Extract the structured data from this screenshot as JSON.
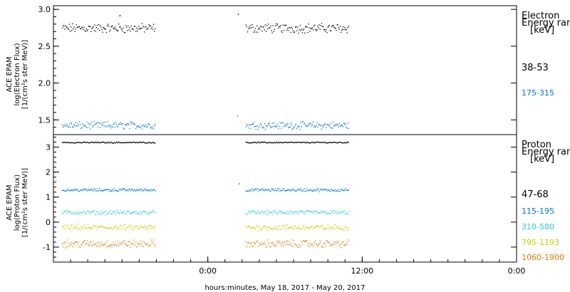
{
  "chart_data": {
    "type": "scatter",
    "xlabel": "hours:minutes, May 18, 2017 - May 20, 2017",
    "x_range_hours": [
      -18,
      36
    ],
    "x_ticks": [
      {
        "hours": 0,
        "label": "0:00"
      },
      {
        "hours": 18,
        "label": "12:00"
      },
      {
        "hours": 36,
        "label": "0:00"
      }
    ],
    "data_gaps_hours": [
      [
        -6.2,
        -5.6
      ],
      [
        4.0,
        4.4
      ]
    ],
    "data_coverage_hours": [
      [
        -17,
        -6.2
      ],
      [
        4.4,
        16.4
      ]
    ],
    "panels": [
      {
        "name": "electron",
        "ylabel_lines": [
          "ACE EPAM",
          "log(Electron Flux)",
          "[1/(cm²s ster MeV)]"
        ],
        "ylim": [
          1.3,
          3.05
        ],
        "yticks": [
          1.5,
          2.0,
          2.5,
          3.0
        ],
        "ytick_labels": [
          "1.5",
          "2.0",
          "2.5",
          "3.0"
        ],
        "legend_title": [
          "Electron",
          "Energy ranges",
          "[keV]"
        ],
        "series": [
          {
            "name": "38-53",
            "color": "#000000",
            "mean": 2.75,
            "spread": 0.05,
            "outliers": [
              [
                -10.3,
                2.92
              ],
              [
                3.5,
                2.94
              ]
            ]
          },
          {
            "name": "175-315",
            "color": "#0077cc",
            "mean": 1.43,
            "spread": 0.04,
            "outliers": [
              [
                3.4,
                1.56
              ]
            ]
          }
        ]
      },
      {
        "name": "proton",
        "ylabel_lines": [
          "ACE EPAM",
          "log(Proton Flux)",
          "[1/(cm²s ster MeV)]"
        ],
        "ylim": [
          -1.6,
          3.5
        ],
        "yticks": [
          -1,
          0,
          1,
          2,
          3
        ],
        "ytick_labels": [
          "-1",
          "0",
          "1",
          "2",
          "3"
        ],
        "legend_title": [
          "Proton",
          "Energy ranges",
          "[keV]"
        ],
        "series": [
          {
            "name": "47-68",
            "color": "#000000",
            "mean": 3.2,
            "spread": 0.02,
            "outliers": []
          },
          {
            "name": "115-195",
            "color": "#0077cc",
            "mean": 1.3,
            "spread": 0.05,
            "outliers": [
              [
                3.6,
                1.55
              ]
            ]
          },
          {
            "name": "310-580",
            "color": "#33cccc",
            "mean": 0.4,
            "spread": 0.07,
            "outliers": []
          },
          {
            "name": "795-1193",
            "color": "#cccc00",
            "mean": -0.2,
            "spread": 0.09,
            "outliers": []
          },
          {
            "name": "1060-1900",
            "color": "#ee7700",
            "mean": -0.85,
            "spread": 0.12,
            "outliers": []
          }
        ]
      }
    ]
  }
}
